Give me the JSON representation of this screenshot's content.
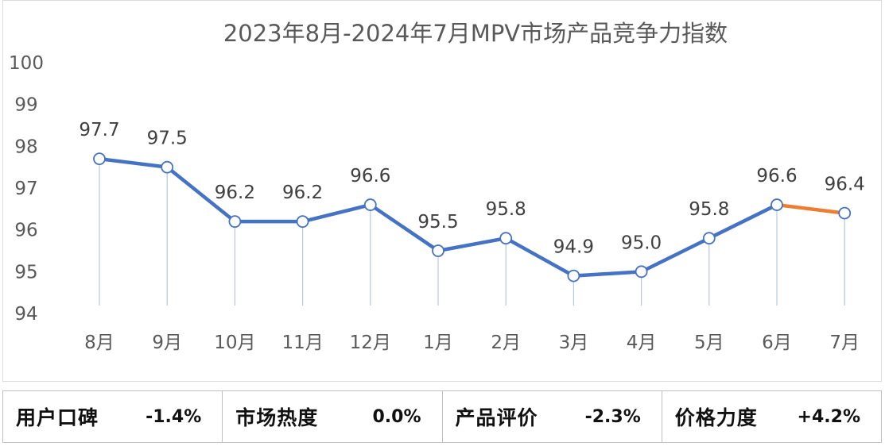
{
  "chart_data": {
    "type": "line",
    "title": "2023年8月-2024年7月MPV市场产品竞争力指数",
    "categories": [
      "8月",
      "9月",
      "10月",
      "11月",
      "12月",
      "1月",
      "2月",
      "3月",
      "4月",
      "5月",
      "6月",
      "7月"
    ],
    "values": [
      97.7,
      97.5,
      96.2,
      96.2,
      96.6,
      95.5,
      95.8,
      94.9,
      95.0,
      95.8,
      96.6,
      96.4
    ],
    "value_labels": [
      "97.7",
      "97.5",
      "96.2",
      "96.2",
      "96.6",
      "95.5",
      "95.8",
      "94.9",
      "95.0",
      "95.8",
      "96.6",
      "96.4"
    ],
    "ylim": [
      94,
      100
    ],
    "yticks": [
      "94",
      "95",
      "96",
      "97",
      "98",
      "99",
      "100"
    ],
    "grid": false,
    "legend": "none",
    "line_color": "#4472C4",
    "last_segment_color": "#ED7D31",
    "drop_line_color": "#b4c7e7"
  },
  "metrics": [
    {
      "label": "用户口碑",
      "value": "-1.4%"
    },
    {
      "label": "市场热度",
      "value": "0.0%"
    },
    {
      "label": "产品评价",
      "value": "-2.3%"
    },
    {
      "label": "价格力度",
      "value": "+4.2%"
    }
  ]
}
